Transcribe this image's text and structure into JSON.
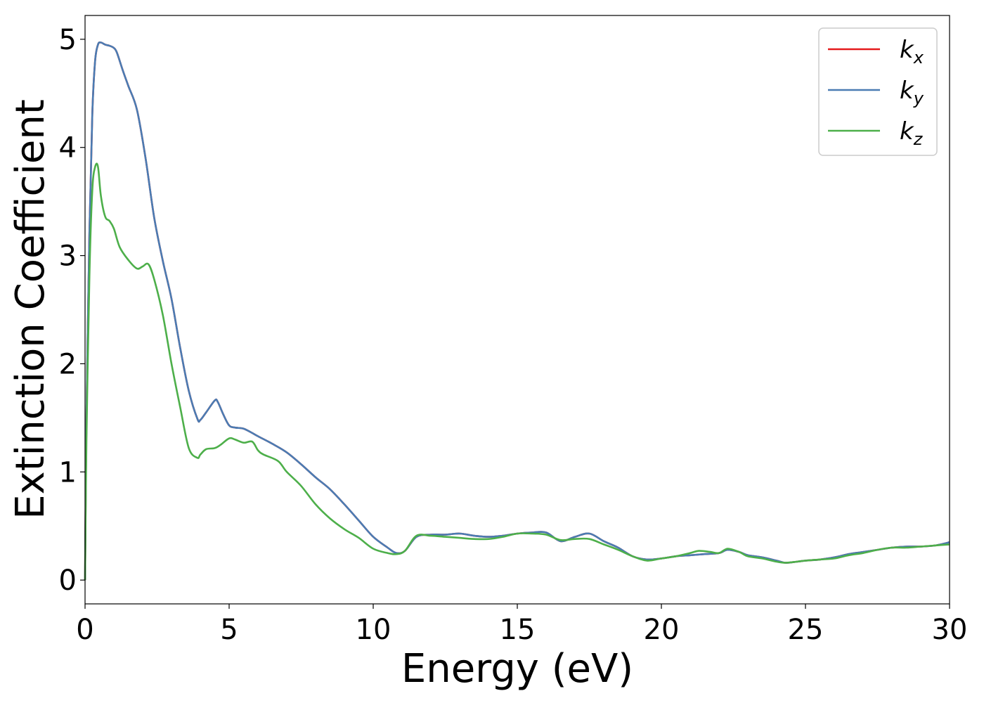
{
  "chart_data": {
    "type": "line",
    "xlabel": "Energy (eV)",
    "ylabel": "Extinction Coefficient",
    "xlim": [
      0,
      30
    ],
    "ylim": [
      -0.22,
      5.22
    ],
    "xticks": [
      0,
      5,
      10,
      15,
      20,
      25,
      30
    ],
    "yticks": [
      0,
      1,
      2,
      3,
      4,
      5
    ],
    "grid": false,
    "legend_position": "top-right",
    "series": [
      {
        "name": "k_x",
        "label_base": "k",
        "label_sub": "x",
        "color": "#e41a1c",
        "x": [
          0,
          0.05,
          0.15,
          0.25,
          0.35,
          0.45,
          0.55,
          0.7,
          0.85,
          1.0,
          1.1,
          1.3,
          1.5,
          1.8,
          2.1,
          2.4,
          2.7,
          3.0,
          3.3,
          3.6,
          3.9,
          4.0,
          4.2,
          4.5,
          4.6,
          4.8,
          5.0,
          5.2,
          5.5,
          5.8,
          6.0,
          6.5,
          7.0,
          7.5,
          8.0,
          8.5,
          9.0,
          9.5,
          10.0,
          10.5,
          10.8,
          11.1,
          11.5,
          12.0,
          12.5,
          13.0,
          13.5,
          14.0,
          14.5,
          15.0,
          15.5,
          16.0,
          16.5,
          17.0,
          17.5,
          18.0,
          18.5,
          19.0,
          19.5,
          20.0,
          20.5,
          21.0,
          21.5,
          22.0,
          22.3,
          22.7,
          23.0,
          23.5,
          24.0,
          24.3,
          24.7,
          25.0,
          25.5,
          26.0,
          26.5,
          27.0,
          27.5,
          28.0,
          28.5,
          29.0,
          29.5,
          30.0
        ],
        "values": [
          0.0,
          1.5,
          3.2,
          4.3,
          4.8,
          4.95,
          4.97,
          4.95,
          4.94,
          4.92,
          4.88,
          4.72,
          4.57,
          4.35,
          3.9,
          3.35,
          2.95,
          2.6,
          2.15,
          1.75,
          1.49,
          1.48,
          1.55,
          1.66,
          1.65,
          1.53,
          1.43,
          1.41,
          1.4,
          1.36,
          1.33,
          1.26,
          1.18,
          1.07,
          0.95,
          0.84,
          0.7,
          0.55,
          0.4,
          0.3,
          0.25,
          0.27,
          0.4,
          0.42,
          0.42,
          0.43,
          0.41,
          0.4,
          0.41,
          0.43,
          0.44,
          0.44,
          0.36,
          0.4,
          0.43,
          0.36,
          0.3,
          0.22,
          0.19,
          0.2,
          0.22,
          0.23,
          0.24,
          0.25,
          0.28,
          0.26,
          0.23,
          0.21,
          0.18,
          0.16,
          0.17,
          0.18,
          0.19,
          0.21,
          0.24,
          0.26,
          0.28,
          0.3,
          0.31,
          0.31,
          0.32,
          0.35
        ]
      },
      {
        "name": "k_y",
        "label_base": "k",
        "label_sub": "y",
        "color": "#4a7cb3",
        "x": [
          0,
          0.05,
          0.15,
          0.25,
          0.35,
          0.45,
          0.55,
          0.7,
          0.85,
          1.0,
          1.1,
          1.3,
          1.5,
          1.8,
          2.1,
          2.4,
          2.7,
          3.0,
          3.3,
          3.6,
          3.9,
          4.0,
          4.2,
          4.5,
          4.6,
          4.8,
          5.0,
          5.2,
          5.5,
          5.8,
          6.0,
          6.5,
          7.0,
          7.5,
          8.0,
          8.5,
          9.0,
          9.5,
          10.0,
          10.5,
          10.8,
          11.1,
          11.5,
          12.0,
          12.5,
          13.0,
          13.5,
          14.0,
          14.5,
          15.0,
          15.5,
          16.0,
          16.5,
          17.0,
          17.5,
          18.0,
          18.5,
          19.0,
          19.5,
          20.0,
          20.5,
          21.0,
          21.5,
          22.0,
          22.3,
          22.7,
          23.0,
          23.5,
          24.0,
          24.3,
          24.7,
          25.0,
          25.5,
          26.0,
          26.5,
          27.0,
          27.5,
          28.0,
          28.5,
          29.0,
          29.5,
          30.0
        ],
        "values": [
          0.0,
          1.5,
          3.2,
          4.3,
          4.8,
          4.95,
          4.97,
          4.95,
          4.94,
          4.92,
          4.88,
          4.72,
          4.57,
          4.35,
          3.9,
          3.35,
          2.95,
          2.6,
          2.15,
          1.75,
          1.49,
          1.48,
          1.55,
          1.66,
          1.65,
          1.53,
          1.43,
          1.41,
          1.4,
          1.36,
          1.33,
          1.26,
          1.18,
          1.07,
          0.95,
          0.84,
          0.7,
          0.55,
          0.4,
          0.3,
          0.25,
          0.27,
          0.4,
          0.42,
          0.42,
          0.43,
          0.41,
          0.4,
          0.41,
          0.43,
          0.44,
          0.44,
          0.36,
          0.4,
          0.43,
          0.36,
          0.3,
          0.22,
          0.19,
          0.2,
          0.22,
          0.23,
          0.24,
          0.25,
          0.28,
          0.26,
          0.23,
          0.21,
          0.18,
          0.16,
          0.17,
          0.18,
          0.19,
          0.21,
          0.24,
          0.26,
          0.28,
          0.3,
          0.31,
          0.31,
          0.32,
          0.35
        ]
      },
      {
        "name": "k_z",
        "label_base": "k",
        "label_sub": "z",
        "color": "#4daf4a",
        "x": [
          0,
          0.05,
          0.15,
          0.25,
          0.35,
          0.45,
          0.55,
          0.7,
          0.85,
          1.0,
          1.2,
          1.5,
          1.8,
          2.0,
          2.2,
          2.4,
          2.7,
          3.0,
          3.3,
          3.6,
          3.9,
          4.0,
          4.2,
          4.5,
          4.7,
          5.0,
          5.2,
          5.5,
          5.8,
          6.0,
          6.2,
          6.7,
          7.0,
          7.5,
          8.0,
          8.5,
          9.0,
          9.5,
          10.0,
          10.5,
          10.8,
          11.1,
          11.5,
          12.0,
          12.5,
          13.0,
          13.5,
          14.0,
          14.5,
          15.0,
          15.5,
          16.0,
          16.5,
          17.0,
          17.5,
          18.0,
          18.5,
          19.0,
          19.5,
          20.0,
          20.5,
          21.0,
          21.3,
          21.7,
          22.0,
          22.3,
          22.7,
          23.0,
          23.5,
          24.0,
          24.3,
          24.7,
          25.0,
          25.5,
          26.0,
          26.5,
          27.0,
          27.5,
          28.0,
          28.5,
          29.0,
          29.5,
          30.0
        ],
        "values": [
          0.0,
          1.3,
          2.8,
          3.6,
          3.82,
          3.82,
          3.55,
          3.36,
          3.32,
          3.25,
          3.08,
          2.96,
          2.88,
          2.9,
          2.92,
          2.78,
          2.45,
          2.0,
          1.6,
          1.22,
          1.13,
          1.16,
          1.21,
          1.22,
          1.25,
          1.31,
          1.3,
          1.27,
          1.28,
          1.2,
          1.16,
          1.1,
          1.0,
          0.87,
          0.7,
          0.57,
          0.47,
          0.39,
          0.29,
          0.25,
          0.24,
          0.27,
          0.41,
          0.41,
          0.4,
          0.39,
          0.38,
          0.38,
          0.4,
          0.43,
          0.43,
          0.42,
          0.37,
          0.38,
          0.38,
          0.33,
          0.28,
          0.22,
          0.18,
          0.2,
          0.22,
          0.25,
          0.27,
          0.26,
          0.25,
          0.29,
          0.26,
          0.22,
          0.2,
          0.17,
          0.16,
          0.17,
          0.18,
          0.19,
          0.2,
          0.23,
          0.25,
          0.28,
          0.3,
          0.3,
          0.31,
          0.32,
          0.33
        ]
      }
    ]
  }
}
